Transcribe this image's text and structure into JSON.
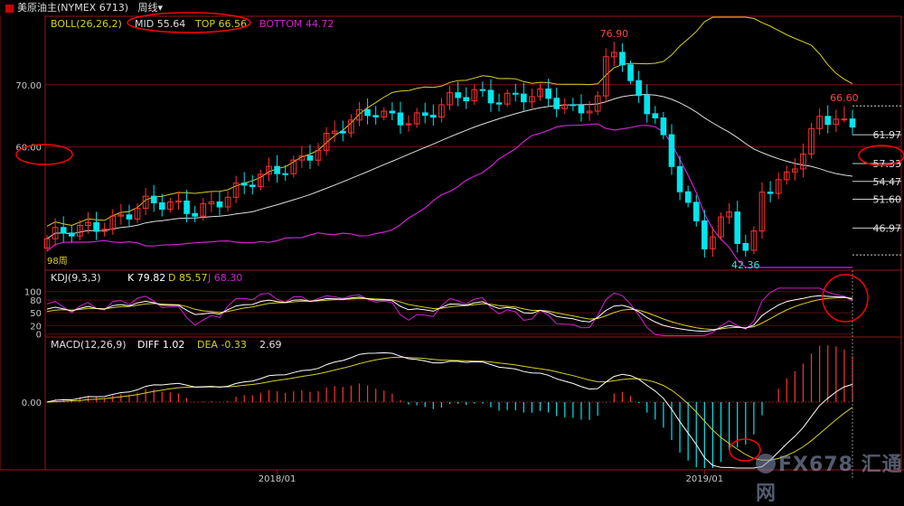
{
  "header": {
    "instrument": "美原油主(NYMEX 6713)",
    "period": "周线",
    "period_arrow": "▾"
  },
  "panels": {
    "price": {
      "boll_label": "BOLL(26,26,2)",
      "mid": "MID 55.64",
      "top": "TOP 66.56",
      "bottom": "BOTTOM 44.72",
      "y_ticks": [
        "70.00",
        "60.00"
      ],
      "price_labels": [
        "61.97",
        "57.33",
        "54.47",
        "51.60",
        "46.97"
      ],
      "extremes": {
        "high": "76.90",
        "low": "42.36",
        "recent_high": "66.60"
      },
      "bar_count_label": "98周"
    },
    "kdj": {
      "label": "KDJ(9,3,3)",
      "k": "K 79.82",
      "d": "D 85.57",
      "j": "J 68.30",
      "y_ticks": [
        "100",
        "80",
        "50",
        "20",
        "0"
      ]
    },
    "macd": {
      "label": "MACD(12,26,9)",
      "diff": "DIFF 1.02",
      "dea": "DEA -0.33",
      "macd": "2.69",
      "y_ticks": [
        "0.00"
      ]
    }
  },
  "x_axis": [
    "2018/01",
    "2019/01"
  ],
  "watermark": "FX678 汇通网",
  "colors": {
    "up": "#ff3030",
    "down": "#00e5ee",
    "boll_mid": "#dddddd",
    "boll_top": "#d8d020",
    "boll_bottom": "#d020d0",
    "k": "#ffffff",
    "d": "#d8d020",
    "j": "#d020d0",
    "annotation": "#ff0000"
  },
  "chart_data": {
    "type": "candlestick",
    "title": "美原油主(NYMEX 6713) 周线",
    "price_range": [
      40.5,
      81
    ],
    "annotated_points": [
      {
        "label": "76.90",
        "value": 76.9
      },
      {
        "label": "42.36",
        "value": 42.36
      },
      {
        "label": "66.60",
        "value": 66.6
      }
    ],
    "price_levels": [
      61.97,
      57.33,
      54.47,
      51.6,
      46.97
    ],
    "indicators": {
      "boll": {
        "period": 26,
        "mid": 55.64,
        "top": 66.56,
        "bottom": 44.72
      },
      "kdj": {
        "k": 79.82,
        "d": 85.57,
        "j": 68.3
      },
      "macd": {
        "diff": 1.02,
        "dea": -0.33,
        "macd": 2.69
      }
    },
    "close_series": {
      "sample_index": [
        0,
        6,
        12,
        18,
        24,
        30,
        36,
        40,
        46,
        52,
        58,
        64,
        70,
        74,
        80,
        86,
        90,
        94,
        98
      ],
      "values": [
        44.5,
        48.0,
        50.2,
        50.5,
        53.0,
        58.0,
        62.5,
        66.0,
        64.5,
        69.0,
        68.0,
        66.0,
        70.5,
        64.0,
        45.0,
        52.0,
        56.0,
        64.0,
        63.5
      ]
    }
  }
}
